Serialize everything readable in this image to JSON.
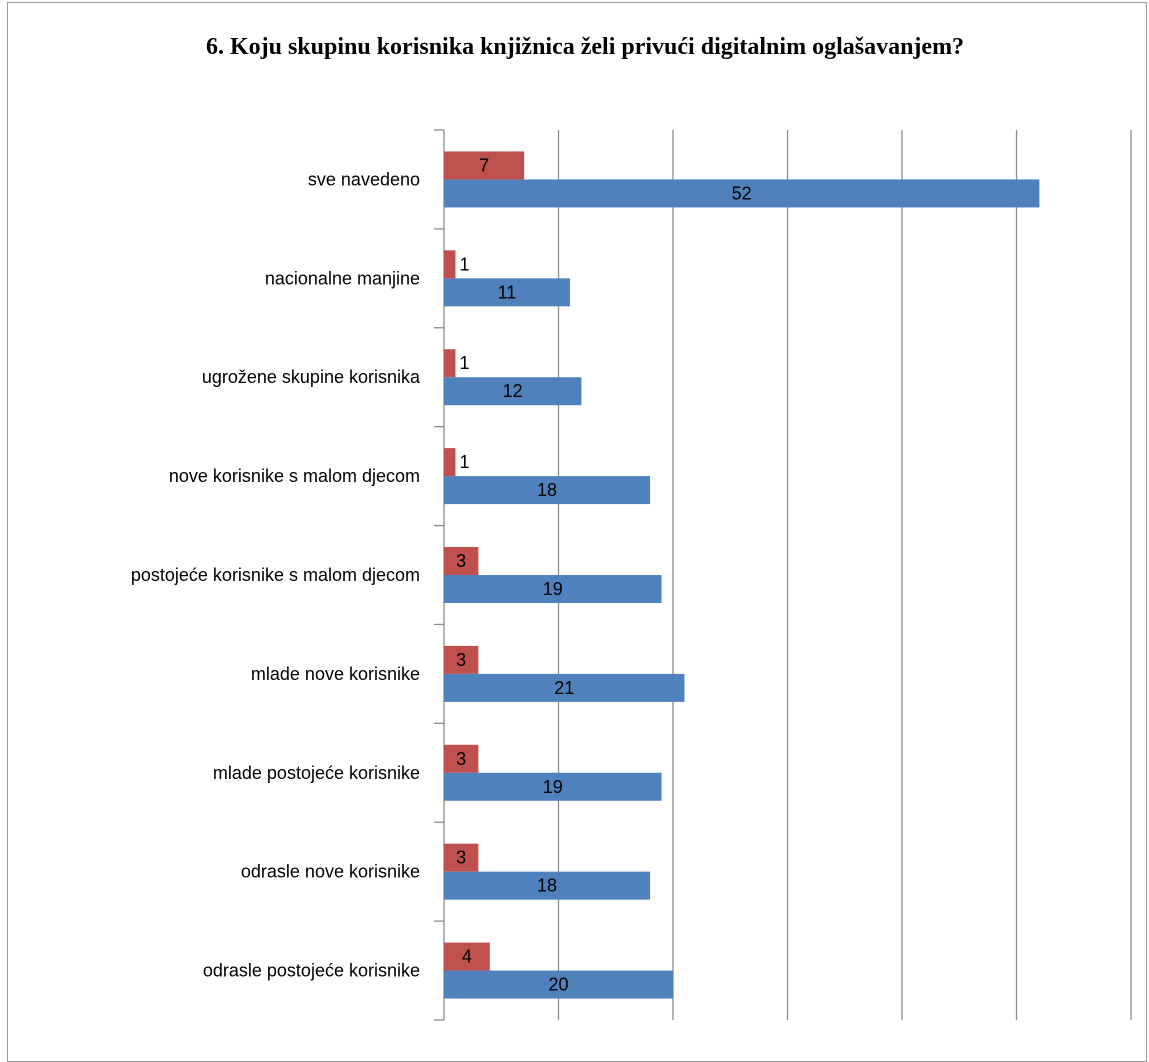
{
  "chart_data": {
    "type": "bar",
    "orientation": "horizontal",
    "title": "6. Koju skupinu korisnika knjižnica želi privući digitalnim oglašavanjem?",
    "categories": [
      "sve navedeno",
      "nacionalne manjine",
      "ugrožene skupine korisnika",
      "nove korisnike s malom djecom",
      "postojeće korisnike s malom djecom",
      "mlade nove korisnike",
      "mlade postojeće korisnike",
      "odrasle nove korisnike",
      "odrasle postojeće korisnike"
    ],
    "series": [
      {
        "values": [
          7,
          1,
          1,
          1,
          3,
          3,
          3,
          3,
          4
        ],
        "color": "#c0504d"
      },
      {
        "values": [
          52,
          11,
          12,
          18,
          19,
          21,
          19,
          18,
          20
        ],
        "color": "#4f81bd"
      }
    ],
    "xlim": [
      0,
      60
    ],
    "x_gridlines": [
      0,
      10,
      20,
      30,
      40,
      50,
      60
    ],
    "grid": true,
    "legend": "none",
    "data_labels": true
  }
}
